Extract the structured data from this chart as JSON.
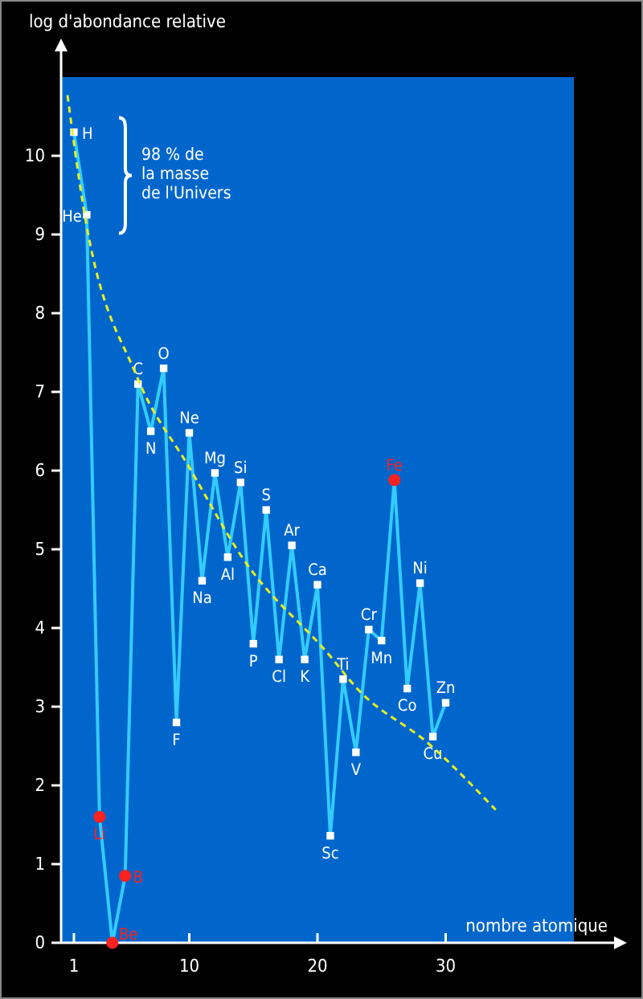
{
  "chart_data": {
    "type": "line",
    "xlabel": "nombre atomique",
    "ylabel": "log d'abondance relative",
    "xlim": [
      0,
      40
    ],
    "ylim": [
      0,
      11
    ],
    "xticks": [
      1,
      10,
      20,
      30
    ],
    "yticks": [
      0,
      1,
      2,
      3,
      4,
      5,
      6,
      7,
      8,
      9,
      10
    ],
    "grid": false,
    "marker": "square",
    "line_style": "solid",
    "series": [
      {
        "x": [
          1,
          2,
          3,
          4,
          5,
          6,
          7,
          8,
          9,
          10,
          11,
          12,
          13,
          14,
          15,
          16,
          17,
          18,
          19,
          20,
          21,
          22,
          23,
          24,
          25,
          26,
          27,
          28,
          29,
          30
        ],
        "values": [
          10.3,
          9.25,
          1.6,
          0,
          0.85,
          7.1,
          6.5,
          7.3,
          2.8,
          6.48,
          4.6,
          5.97,
          4.9,
          5.85,
          3.8,
          5.5,
          3.6,
          5.05,
          3.6,
          4.55,
          1.36,
          3.35,
          2.42,
          3.98,
          3.84,
          5.88,
          3.23,
          4.57,
          2.62,
          3.05
        ],
        "color": "#33ccff",
        "colors": [
          "#ffffff",
          "#ffffff",
          "#ff2020",
          "#ff2020",
          "#ff2020",
          "#ffffff",
          "#ffffff",
          "#ffffff",
          "#ffffff",
          "#ffffff",
          "#ffffff",
          "#ffffff",
          "#ffffff",
          "#ffffff",
          "#ffffff",
          "#ffffff",
          "#ffffff",
          "#ffffff",
          "#ffffff",
          "#ffffff",
          "#ffffff",
          "#ffffff",
          "#ffffff",
          "#ffffff",
          "#ffffff",
          "#ff2020",
          "#ffffff",
          "#ffffff",
          "#ffffff",
          "#ffffff"
        ],
        "value_labels": [
          "H",
          "He",
          "Li",
          "Be",
          "B",
          "C",
          "N",
          "O",
          "F",
          "Ne",
          "Na",
          "Mg",
          "Al",
          "Si",
          "P",
          "S",
          "Cl",
          "Ar",
          "K",
          "Ca",
          "Sc",
          "Ti",
          "V",
          "Cr",
          "Mn",
          "Fe",
          "Co",
          "Ni",
          "Cu",
          "Zn"
        ]
      },
      {
        "type": "line",
        "x": [
          0.5,
          1.7,
          5.9,
          10,
          14.2,
          20.9,
          23.1,
          28.75,
          33.9
        ],
        "values": [
          10.77,
          9.39,
          7.2,
          6.04,
          4.88,
          3.66,
          3.23,
          2.52,
          1.69
        ],
        "color": "#e8f020",
        "line_style": "dashed",
        "marker": "none"
      }
    ],
    "annotations": [
      "98 % de la masse de l'Univers"
    ]
  }
}
